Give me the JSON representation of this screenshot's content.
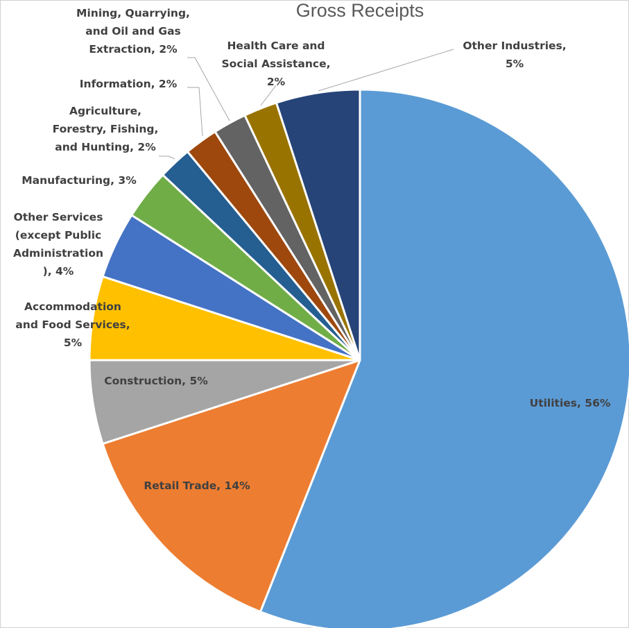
{
  "chart_data": {
    "type": "pie",
    "title": "Gross Receipts",
    "slices": [
      {
        "name": "Utilities",
        "value": 56,
        "color": "#5b9bd5",
        "label": [
          "Utilities, 56%"
        ]
      },
      {
        "name": "Retail Trade",
        "value": 14,
        "color": "#ed7d31",
        "label": [
          "Retail Trade, 14%"
        ]
      },
      {
        "name": "Construction",
        "value": 5,
        "color": "#a5a5a5",
        "label": [
          "Construction, 5%"
        ]
      },
      {
        "name": "Accommodation and Food Services",
        "value": 5,
        "color": "#ffc000",
        "label": [
          "Accommodation",
          "and Food Services,",
          "5%"
        ]
      },
      {
        "name": "Other Services (except Public Administration)",
        "value": 4,
        "color": "#4472c4",
        "label": [
          "Other Services",
          "(except Public",
          "Administration",
          "), 4%"
        ]
      },
      {
        "name": "Manufacturing",
        "value": 3,
        "color": "#70ad47",
        "label": [
          "Manufacturing, 3%"
        ]
      },
      {
        "name": "Agriculture, Forestry, Fishing, and Hunting",
        "value": 2,
        "color": "#255e91",
        "label": [
          "Agriculture,",
          "Forestry, Fishing,",
          "and Hunting, 2%"
        ]
      },
      {
        "name": "Information",
        "value": 2,
        "color": "#9e480e",
        "label": [
          "Information, 2%"
        ]
      },
      {
        "name": "Mining, Quarrying, and Oil and Gas Extraction",
        "value": 2,
        "color": "#636363",
        "label": [
          "Mining, Quarrying,",
          "and Oil and Gas",
          "Extraction, 2%"
        ]
      },
      {
        "name": "Health Care and Social Assistance",
        "value": 2,
        "color": "#997300",
        "label": [
          "Health Care and",
          "Social Assistance,",
          "2%"
        ]
      },
      {
        "name": "Other Industries",
        "value": 5,
        "color": "#264478",
        "label": [
          "Other Industries,",
          "5%"
        ]
      }
    ],
    "legend": "none",
    "data_labels": "category, percentage"
  }
}
